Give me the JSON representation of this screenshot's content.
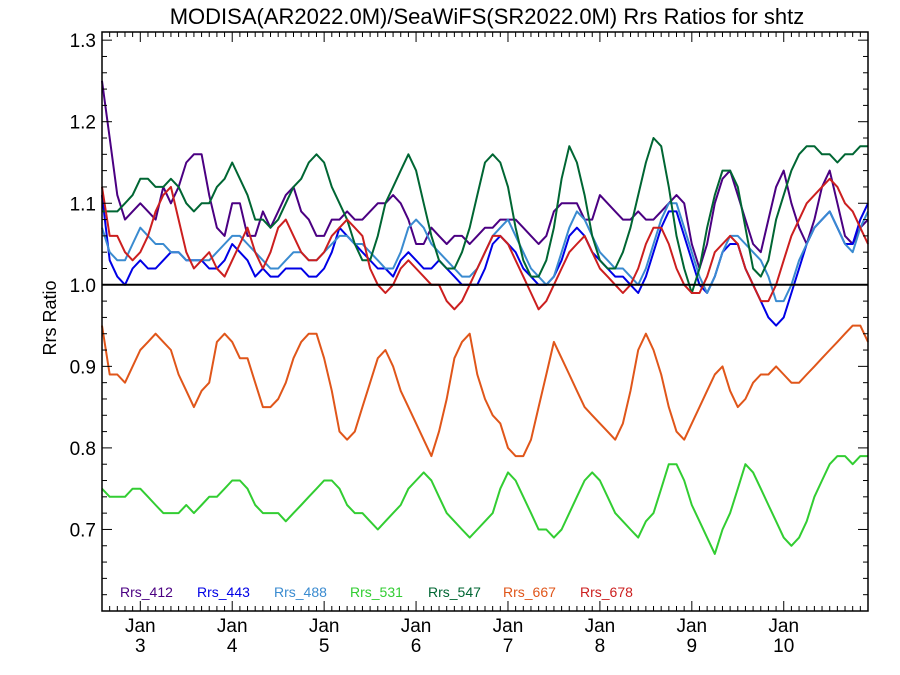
{
  "chart_data": {
    "type": "line",
    "title": "MODISA(AR2022.0M)/SeaWiFS(SR2022.0M)  Rrs Ratios for shtz",
    "ylabel": "Rrs Ratio",
    "xlabel": "",
    "ylim": [
      0.6,
      1.31
    ],
    "yticks": [
      "0.7",
      "0.8",
      "0.9",
      "1.0",
      "1.1",
      "1.2",
      "1.3"
    ],
    "ytick_values": [
      0.7,
      0.8,
      0.9,
      1.0,
      1.1,
      1.2,
      1.3
    ],
    "xlim": [
      0,
      100
    ],
    "xticks": [
      {
        "month": "Jan",
        "year": "3",
        "x": 5
      },
      {
        "month": "Jan",
        "year": "4",
        "x": 17
      },
      {
        "month": "Jan",
        "year": "5",
        "x": 29
      },
      {
        "month": "Jan",
        "year": "6",
        "x": 41
      },
      {
        "month": "Jan",
        "year": "7",
        "x": 53
      },
      {
        "month": "Jan",
        "year": "8",
        "x": 65
      },
      {
        "month": "Jan",
        "year": "9",
        "x": 77
      },
      {
        "month": "Jan",
        "year": "10",
        "x": 89
      }
    ],
    "reference_line": 1.0,
    "x": [
      0,
      1,
      2,
      3,
      4,
      5,
      6,
      7,
      8,
      9,
      10,
      11,
      12,
      13,
      14,
      15,
      16,
      17,
      18,
      19,
      20,
      21,
      22,
      23,
      24,
      25,
      26,
      27,
      28,
      29,
      30,
      31,
      32,
      33,
      34,
      35,
      36,
      37,
      38,
      39,
      40,
      41,
      42,
      43,
      44,
      45,
      46,
      47,
      48,
      49,
      50,
      51,
      52,
      53,
      54,
      55,
      56,
      57,
      58,
      59,
      60,
      61,
      62,
      63,
      64,
      65,
      66,
      67,
      68,
      69,
      70,
      71,
      72,
      73,
      74,
      75,
      76,
      77,
      78,
      79,
      80,
      81,
      82,
      83,
      84,
      85,
      86,
      87,
      88,
      89,
      90,
      91,
      92,
      93,
      94,
      95,
      96,
      97,
      98,
      99,
      100
    ],
    "series": [
      {
        "name": "Rrs_412",
        "color": "#4b0082",
        "values": [
          1.25,
          1.18,
          1.11,
          1.08,
          1.09,
          1.1,
          1.09,
          1.08,
          1.12,
          1.1,
          1.12,
          1.15,
          1.16,
          1.16,
          1.11,
          1.07,
          1.06,
          1.1,
          1.1,
          1.06,
          1.06,
          1.09,
          1.07,
          1.09,
          1.11,
          1.12,
          1.09,
          1.08,
          1.06,
          1.06,
          1.08,
          1.08,
          1.09,
          1.08,
          1.08,
          1.09,
          1.1,
          1.1,
          1.11,
          1.1,
          1.08,
          1.05,
          1.05,
          1.07,
          1.06,
          1.05,
          1.06,
          1.06,
          1.05,
          1.06,
          1.07,
          1.07,
          1.08,
          1.08,
          1.08,
          1.07,
          1.06,
          1.05,
          1.06,
          1.09,
          1.1,
          1.1,
          1.1,
          1.08,
          1.08,
          1.11,
          1.1,
          1.09,
          1.08,
          1.08,
          1.09,
          1.08,
          1.08,
          1.09,
          1.1,
          1.11,
          1.1,
          1.05,
          1.02,
          1.05,
          1.1,
          1.13,
          1.14,
          1.11,
          1.08,
          1.05,
          1.04,
          1.08,
          1.12,
          1.14,
          1.1,
          1.07,
          1.05,
          1.08,
          1.12,
          1.14,
          1.1,
          1.06,
          1.05,
          1.07,
          1.08
        ]
      },
      {
        "name": "Rrs_443",
        "color": "#0000e6",
        "values": [
          1.11,
          1.03,
          1.01,
          1.0,
          1.02,
          1.03,
          1.02,
          1.02,
          1.03,
          1.04,
          1.04,
          1.03,
          1.03,
          1.03,
          1.02,
          1.02,
          1.03,
          1.05,
          1.04,
          1.03,
          1.01,
          1.02,
          1.01,
          1.01,
          1.02,
          1.02,
          1.02,
          1.01,
          1.01,
          1.02,
          1.04,
          1.07,
          1.06,
          1.05,
          1.04,
          1.03,
          1.02,
          1.02,
          1.01,
          1.03,
          1.04,
          1.03,
          1.02,
          1.02,
          1.03,
          1.02,
          1.01,
          1.0,
          1.0,
          1.0,
          1.02,
          1.05,
          1.06,
          1.05,
          1.04,
          1.02,
          1.01,
          1.0,
          1.0,
          1.01,
          1.03,
          1.06,
          1.07,
          1.06,
          1.04,
          1.03,
          1.02,
          1.01,
          1.01,
          1.0,
          0.99,
          1.01,
          1.04,
          1.07,
          1.09,
          1.09,
          1.06,
          1.03,
          1.0,
          0.99,
          1.01,
          1.04,
          1.05,
          1.05,
          1.02,
          1.0,
          0.98,
          0.96,
          0.95,
          0.96,
          0.99,
          1.02,
          1.05,
          1.07,
          1.08,
          1.09,
          1.07,
          1.05,
          1.05,
          1.08,
          1.1
        ]
      },
      {
        "name": "Rrs_488",
        "color": "#3a8bd0",
        "values": [
          1.07,
          1.04,
          1.03,
          1.03,
          1.05,
          1.07,
          1.06,
          1.05,
          1.05,
          1.04,
          1.04,
          1.03,
          1.03,
          1.03,
          1.03,
          1.04,
          1.05,
          1.06,
          1.06,
          1.05,
          1.04,
          1.03,
          1.02,
          1.02,
          1.03,
          1.04,
          1.04,
          1.03,
          1.03,
          1.04,
          1.05,
          1.06,
          1.06,
          1.05,
          1.05,
          1.04,
          1.03,
          1.02,
          1.02,
          1.04,
          1.07,
          1.08,
          1.07,
          1.05,
          1.04,
          1.03,
          1.02,
          1.01,
          1.01,
          1.02,
          1.04,
          1.06,
          1.07,
          1.08,
          1.06,
          1.04,
          1.02,
          1.01,
          1.0,
          1.01,
          1.04,
          1.07,
          1.09,
          1.08,
          1.06,
          1.04,
          1.03,
          1.02,
          1.02,
          1.01,
          1.0,
          1.02,
          1.05,
          1.08,
          1.1,
          1.1,
          1.07,
          1.04,
          1.01,
          0.99,
          1.01,
          1.04,
          1.06,
          1.06,
          1.05,
          1.04,
          1.03,
          1.01,
          0.98,
          0.98,
          1.0,
          1.03,
          1.05,
          1.07,
          1.08,
          1.09,
          1.07,
          1.05,
          1.04,
          1.07,
          1.09
        ]
      },
      {
        "name": "Rrs_531",
        "color": "#32cd32",
        "values": [
          0.75,
          0.74,
          0.74,
          0.74,
          0.75,
          0.75,
          0.74,
          0.73,
          0.72,
          0.72,
          0.72,
          0.73,
          0.72,
          0.73,
          0.74,
          0.74,
          0.75,
          0.76,
          0.76,
          0.75,
          0.73,
          0.72,
          0.72,
          0.72,
          0.71,
          0.72,
          0.73,
          0.74,
          0.75,
          0.76,
          0.76,
          0.75,
          0.73,
          0.72,
          0.72,
          0.71,
          0.7,
          0.71,
          0.72,
          0.73,
          0.75,
          0.76,
          0.77,
          0.76,
          0.74,
          0.72,
          0.71,
          0.7,
          0.69,
          0.7,
          0.71,
          0.72,
          0.75,
          0.77,
          0.76,
          0.74,
          0.72,
          0.7,
          0.7,
          0.69,
          0.7,
          0.72,
          0.74,
          0.76,
          0.77,
          0.76,
          0.74,
          0.72,
          0.71,
          0.7,
          0.69,
          0.71,
          0.72,
          0.75,
          0.78,
          0.78,
          0.76,
          0.73,
          0.71,
          0.69,
          0.67,
          0.7,
          0.72,
          0.75,
          0.78,
          0.77,
          0.75,
          0.73,
          0.71,
          0.69,
          0.68,
          0.69,
          0.71,
          0.74,
          0.76,
          0.78,
          0.79,
          0.79,
          0.78,
          0.79,
          0.79
        ]
      },
      {
        "name": "Rrs_547",
        "color": "#006633",
        "values": [
          1.09,
          1.09,
          1.09,
          1.1,
          1.11,
          1.13,
          1.13,
          1.12,
          1.12,
          1.13,
          1.12,
          1.1,
          1.09,
          1.1,
          1.1,
          1.12,
          1.13,
          1.15,
          1.13,
          1.11,
          1.08,
          1.08,
          1.07,
          1.08,
          1.1,
          1.12,
          1.13,
          1.15,
          1.16,
          1.15,
          1.12,
          1.1,
          1.08,
          1.05,
          1.03,
          1.03,
          1.06,
          1.1,
          1.12,
          1.14,
          1.16,
          1.14,
          1.1,
          1.06,
          1.03,
          1.02,
          1.02,
          1.04,
          1.07,
          1.11,
          1.15,
          1.16,
          1.15,
          1.12,
          1.07,
          1.03,
          1.01,
          1.01,
          1.03,
          1.07,
          1.13,
          1.17,
          1.15,
          1.11,
          1.06,
          1.03,
          1.02,
          1.02,
          1.04,
          1.07,
          1.11,
          1.15,
          1.18,
          1.17,
          1.12,
          1.06,
          1.02,
          0.99,
          1.02,
          1.07,
          1.11,
          1.14,
          1.14,
          1.12,
          1.07,
          1.02,
          1.01,
          1.03,
          1.08,
          1.11,
          1.14,
          1.16,
          1.17,
          1.17,
          1.16,
          1.16,
          1.15,
          1.16,
          1.16,
          1.17,
          1.17
        ]
      },
      {
        "name": "Rrs_667",
        "color": "#e0561a",
        "values": [
          0.95,
          0.89,
          0.89,
          0.88,
          0.9,
          0.92,
          0.93,
          0.94,
          0.93,
          0.92,
          0.89,
          0.87,
          0.85,
          0.87,
          0.88,
          0.93,
          0.94,
          0.93,
          0.91,
          0.91,
          0.88,
          0.85,
          0.85,
          0.86,
          0.88,
          0.91,
          0.93,
          0.94,
          0.94,
          0.91,
          0.87,
          0.82,
          0.81,
          0.82,
          0.85,
          0.88,
          0.91,
          0.92,
          0.9,
          0.87,
          0.85,
          0.83,
          0.81,
          0.79,
          0.82,
          0.86,
          0.91,
          0.93,
          0.94,
          0.89,
          0.86,
          0.84,
          0.83,
          0.8,
          0.79,
          0.79,
          0.81,
          0.85,
          0.89,
          0.93,
          0.91,
          0.89,
          0.87,
          0.85,
          0.84,
          0.83,
          0.82,
          0.81,
          0.83,
          0.87,
          0.92,
          0.94,
          0.92,
          0.89,
          0.85,
          0.82,
          0.81,
          0.83,
          0.85,
          0.87,
          0.89,
          0.9,
          0.87,
          0.85,
          0.86,
          0.88,
          0.89,
          0.89,
          0.9,
          0.89,
          0.88,
          0.88,
          0.89,
          0.9,
          0.91,
          0.92,
          0.93,
          0.94,
          0.95,
          0.95,
          0.93
        ]
      },
      {
        "name": "Rrs_678",
        "color": "#cc1f1f",
        "values": [
          1.12,
          1.06,
          1.06,
          1.04,
          1.03,
          1.04,
          1.06,
          1.09,
          1.11,
          1.12,
          1.08,
          1.04,
          1.02,
          1.03,
          1.04,
          1.02,
          1.01,
          1.03,
          1.05,
          1.07,
          1.04,
          1.02,
          1.04,
          1.07,
          1.08,
          1.06,
          1.04,
          1.03,
          1.03,
          1.04,
          1.06,
          1.07,
          1.08,
          1.07,
          1.06,
          1.02,
          1.0,
          0.99,
          1.0,
          1.02,
          1.03,
          1.02,
          1.01,
          1.0,
          1.0,
          0.98,
          0.97,
          0.98,
          1.0,
          1.02,
          1.04,
          1.06,
          1.06,
          1.05,
          1.03,
          1.01,
          0.99,
          0.97,
          0.98,
          1.0,
          1.02,
          1.04,
          1.05,
          1.06,
          1.04,
          1.02,
          1.01,
          1.0,
          0.99,
          1.0,
          1.02,
          1.05,
          1.07,
          1.07,
          1.05,
          1.02,
          1.0,
          0.99,
          0.99,
          1.01,
          1.04,
          1.05,
          1.06,
          1.05,
          1.02,
          1.0,
          0.98,
          0.98,
          1.0,
          1.03,
          1.06,
          1.08,
          1.1,
          1.11,
          1.12,
          1.13,
          1.12,
          1.1,
          1.09,
          1.07,
          1.05
        ]
      }
    ]
  }
}
